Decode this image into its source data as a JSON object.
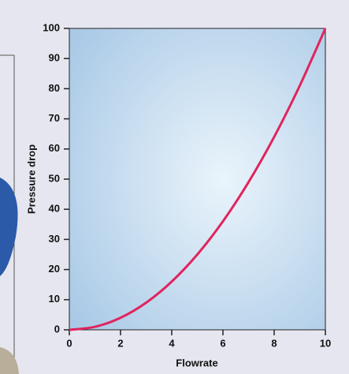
{
  "chart_data": {
    "type": "line",
    "x_label": "Flowrate",
    "y_label": "Pressure drop",
    "x": [
      0,
      1,
      2,
      3,
      4,
      5,
      6,
      7,
      8,
      9,
      10
    ],
    "series": [
      {
        "name": "Pressure drop",
        "color": "#e0245e",
        "values": [
          0,
          1,
          4,
          9,
          16,
          25,
          36,
          49,
          64,
          81,
          100
        ]
      }
    ],
    "xlim": [
      0,
      10
    ],
    "xticks": [
      0,
      2,
      4,
      6,
      8,
      10
    ],
    "ylim": [
      0,
      100
    ],
    "yticks": [
      0,
      10,
      20,
      30,
      40,
      50,
      60,
      70,
      80,
      90,
      100
    ]
  }
}
